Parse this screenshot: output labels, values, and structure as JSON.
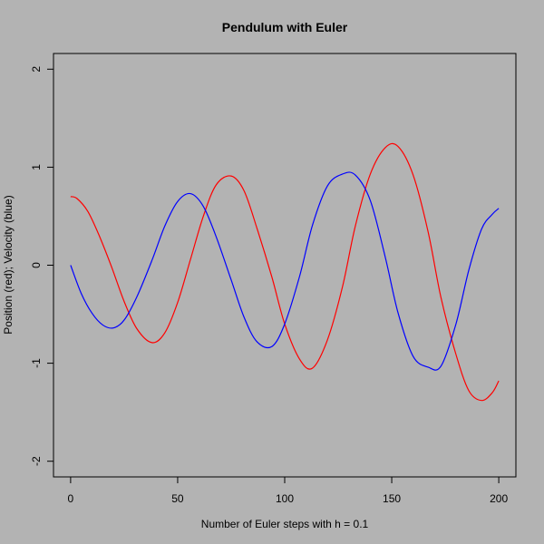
{
  "chart_data": {
    "type": "line",
    "title": "Pendulum with Euler",
    "xlabel": "Number of Euler steps with h = 0.1",
    "ylabel": "Position (red); Velocity (blue)",
    "xlim": [
      -8,
      208
    ],
    "ylim": [
      -2.16,
      2.16
    ],
    "x_ticks": [
      0,
      50,
      100,
      150,
      200
    ],
    "y_ticks": [
      -2,
      -1,
      0,
      1,
      2
    ],
    "x_tick_labels": [
      "0",
      "50",
      "100",
      "150",
      "200"
    ],
    "y_tick_labels": [
      "-2",
      "-1",
      "0",
      "1",
      "2"
    ],
    "grid": false,
    "series": [
      {
        "color": "#ff0000",
        "x": [
          0,
          3,
          8,
          13,
          19,
          25,
          31,
          38,
          44,
          50,
          56,
          62,
          68,
          75,
          81,
          87,
          94,
          100,
          107,
          113,
          120,
          127,
          133,
          140,
          147,
          153,
          160,
          167,
          173,
          180,
          186,
          192,
          197,
          200
        ],
        "values": [
          0.7,
          0.68,
          0.55,
          0.32,
          -0.01,
          -0.37,
          -0.65,
          -0.79,
          -0.69,
          -0.38,
          0.06,
          0.5,
          0.82,
          0.91,
          0.76,
          0.38,
          -0.12,
          -0.6,
          -0.96,
          -1.05,
          -0.76,
          -0.22,
          0.4,
          0.93,
          1.2,
          1.21,
          0.92,
          0.34,
          -0.33,
          -0.91,
          -1.28,
          -1.38,
          -1.3,
          -1.18
        ]
      },
      {
        "color": "#0000ff",
        "x": [
          0,
          5,
          10,
          15,
          20,
          25,
          31,
          38,
          44,
          50,
          56,
          62,
          68,
          75,
          81,
          87,
          94,
          100,
          107,
          113,
          120,
          127,
          133,
          140,
          147,
          153,
          160,
          167,
          173,
          180,
          186,
          192,
          197,
          200
        ],
        "values": [
          0,
          -0.29,
          -0.49,
          -0.61,
          -0.64,
          -0.56,
          -0.32,
          0.05,
          0.4,
          0.65,
          0.73,
          0.6,
          0.29,
          -0.15,
          -0.53,
          -0.78,
          -0.83,
          -0.6,
          -0.11,
          0.41,
          0.81,
          0.93,
          0.92,
          0.66,
          0.08,
          -0.49,
          -0.93,
          -1.04,
          -1.03,
          -0.6,
          -0.05,
          0.37,
          0.52,
          0.58
        ]
      }
    ]
  }
}
